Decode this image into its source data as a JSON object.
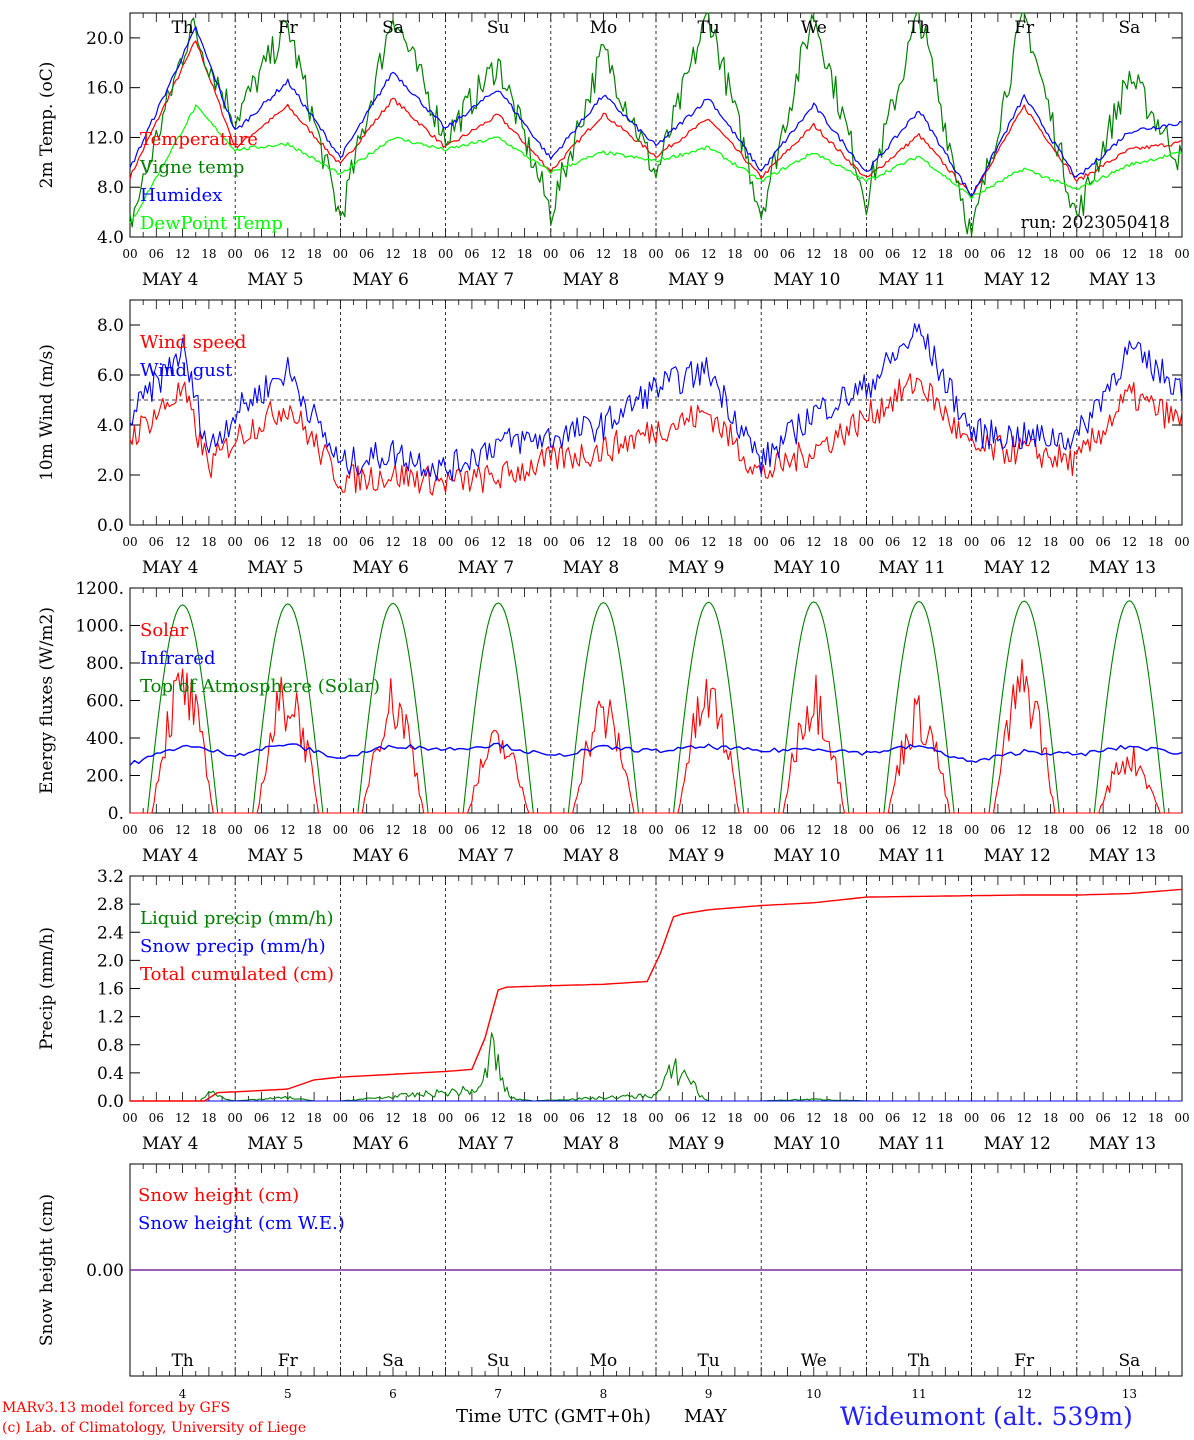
{
  "chart_data": [
    {
      "type": "line",
      "ylabel": "2m Temp. (oC)",
      "ylim": [
        4.0,
        22.0
      ],
      "yticks": [
        "4.0",
        "8.0",
        "12.0",
        "16.0",
        "20.0"
      ],
      "annotation": "run: 2023050418",
      "weekday_labels": [
        "Th",
        "Fr",
        "Sa",
        "Su",
        "Mo",
        "Tu",
        "We",
        "Th",
        "Fr",
        "Sa"
      ],
      "series": [
        {
          "name": "Temperature",
          "color": "#ff0000",
          "x_hours": [
            0,
            15,
            24,
            36,
            48,
            60,
            72,
            84,
            96,
            108,
            120,
            132,
            144,
            156,
            168,
            180,
            192,
            204,
            216,
            228,
            240
          ],
          "values": [
            8.8,
            19.8,
            11.2,
            14.5,
            9.8,
            15.1,
            11.2,
            13.8,
            9.3,
            13.9,
            10.5,
            13.5,
            8.8,
            13.0,
            8.7,
            12.2,
            7.3,
            14.5,
            8.5,
            11.0,
            11.6
          ]
        },
        {
          "name": "Vigne temp",
          "color": "#008000",
          "x_hours": [
            0,
            14,
            24,
            36,
            48,
            60,
            72,
            84,
            96,
            108,
            120,
            132,
            144,
            156,
            168,
            180,
            192,
            204,
            216,
            228,
            240
          ],
          "values": [
            5.0,
            21.0,
            13.5,
            21.0,
            5.5,
            22.0,
            12.0,
            18.0,
            6.0,
            19.0,
            9.0,
            22.0,
            6.0,
            22.0,
            7.0,
            22.0,
            4.0,
            22.0,
            5.5,
            17.0,
            10.0
          ]
        },
        {
          "name": "Humidex",
          "color": "#0000ff",
          "x_hours": [
            0,
            15,
            24,
            36,
            48,
            60,
            72,
            84,
            96,
            108,
            120,
            132,
            144,
            156,
            168,
            180,
            192,
            204,
            216,
            228,
            240
          ],
          "values": [
            9.5,
            20.8,
            12.5,
            16.5,
            10.4,
            17.3,
            12.7,
            15.9,
            10.3,
            15.4,
            11.3,
            15.2,
            9.3,
            14.6,
            9.2,
            14.2,
            7.3,
            15.3,
            8.7,
            12.5,
            13.2
          ]
        },
        {
          "name": "DewPoint Temp",
          "color": "#00ff00",
          "x_hours": [
            0,
            15,
            24,
            36,
            48,
            60,
            72,
            84,
            96,
            108,
            120,
            132,
            144,
            156,
            168,
            180,
            192,
            204,
            216,
            228,
            240
          ],
          "values": [
            5.0,
            14.5,
            11.0,
            11.5,
            9.0,
            12.0,
            11.0,
            12.0,
            9.2,
            10.8,
            10.1,
            11.2,
            8.5,
            10.8,
            8.5,
            10.5,
            7.2,
            9.5,
            7.8,
            9.8,
            10.8
          ]
        }
      ]
    },
    {
      "type": "line",
      "ylabel": "10m Wind (m/s)",
      "ylim": [
        0.0,
        9.0
      ],
      "yticks": [
        "0.0",
        "2.0",
        "4.0",
        "6.0",
        "8.0"
      ],
      "reference_line": 5.0,
      "series": [
        {
          "name": "Wind speed",
          "color": "#ff0000",
          "x_hours": [
            0,
            12,
            18,
            24,
            36,
            48,
            60,
            72,
            84,
            96,
            108,
            120,
            132,
            144,
            156,
            168,
            180,
            192,
            204,
            216,
            228,
            240
          ],
          "values": [
            3.5,
            5.4,
            2.3,
            3.5,
            4.8,
            1.8,
            2.0,
            1.7,
            1.9,
            2.6,
            3.0,
            3.8,
            4.5,
            2.0,
            3.0,
            4.3,
            5.8,
            3.0,
            3.0,
            2.5,
            5.2,
            4.1
          ]
        },
        {
          "name": "Wind gust",
          "color": "#0000ff",
          "x_hours": [
            0,
            12,
            18,
            24,
            36,
            48,
            60,
            72,
            84,
            96,
            108,
            120,
            132,
            144,
            156,
            168,
            180,
            192,
            204,
            216,
            228,
            240
          ],
          "values": [
            4.3,
            7.0,
            3.0,
            4.5,
            6.2,
            2.4,
            2.9,
            2.2,
            3.3,
            3.5,
            4.0,
            5.5,
            6.2,
            2.5,
            4.5,
            5.5,
            7.8,
            3.7,
            3.5,
            3.5,
            7.0,
            5.5
          ]
        }
      ]
    },
    {
      "type": "line",
      "ylabel": "Energy fluxes (W/m2)",
      "ylim": [
        0,
        1200
      ],
      "yticks": [
        "0.",
        "200.",
        "400.",
        "600.",
        "800.",
        "1000.",
        "1200."
      ],
      "series": [
        {
          "name": "Solar",
          "color": "#ff0000",
          "daily_peak": [
            830,
            780,
            750,
            470,
            660,
            760,
            780,
            650,
            850,
            370
          ]
        },
        {
          "name": "Infrared",
          "color": "#0000ff",
          "x_hours": [
            0,
            12,
            24,
            36,
            48,
            60,
            72,
            84,
            96,
            108,
            120,
            132,
            144,
            156,
            168,
            180,
            192,
            204,
            216,
            228,
            240
          ],
          "values": [
            260,
            360,
            310,
            370,
            290,
            360,
            340,
            365,
            300,
            350,
            330,
            355,
            330,
            345,
            320,
            360,
            270,
            330,
            310,
            355,
            320
          ]
        },
        {
          "name": "Top of Atmosphere (Solar)",
          "color": "#008000",
          "daily_peak": [
            1110,
            1115,
            1118,
            1120,
            1122,
            1124,
            1126,
            1128,
            1130,
            1132
          ]
        }
      ]
    },
    {
      "type": "line",
      "ylabel": "Precip (mm/h)",
      "ylim": [
        0.0,
        3.2
      ],
      "yticks": [
        "0.0",
        "0.4",
        "0.8",
        "1.2",
        "1.6",
        "2.0",
        "2.4",
        "2.8",
        "3.2"
      ],
      "series": [
        {
          "name": "Liquid precip (mm/h)",
          "color": "#008000",
          "x_hours": [
            0,
            16,
            19,
            22,
            24,
            36,
            42,
            48,
            80,
            83,
            85,
            87,
            92,
            120,
            124,
            128,
            130,
            132,
            144,
            156,
            168,
            240
          ],
          "values": [
            0,
            0,
            0.22,
            0.02,
            0,
            0.06,
            0,
            0,
            0.2,
            1.0,
            0.3,
            0.05,
            0,
            0.1,
            0.55,
            0.4,
            0.1,
            0,
            0,
            0.03,
            0,
            0
          ]
        },
        {
          "name": "Snow precip (mm/h)",
          "color": "#0000ff",
          "x_hours": [
            0,
            240
          ],
          "values": [
            0,
            0
          ]
        },
        {
          "name": "Total cumulated (cm)",
          "color": "#ff0000",
          "x_hours": [
            0,
            17,
            20,
            24,
            36,
            42,
            48,
            60,
            72,
            78,
            81,
            84,
            86,
            96,
            108,
            118,
            121,
            124,
            126,
            132,
            144,
            156,
            168,
            180,
            192,
            204,
            216,
            228,
            240
          ],
          "values": [
            0,
            0,
            0.12,
            0.13,
            0.17,
            0.3,
            0.34,
            0.38,
            0.42,
            0.45,
            0.9,
            1.58,
            1.62,
            1.64,
            1.66,
            1.7,
            2.1,
            2.62,
            2.66,
            2.72,
            2.78,
            2.82,
            2.9,
            2.91,
            2.92,
            2.93,
            2.93,
            2.95,
            3.01
          ]
        }
      ]
    },
    {
      "type": "line",
      "ylabel": "Snow height (cm)",
      "ylim": [
        -1,
        1
      ],
      "yticks": [
        "0.00"
      ],
      "weekday_labels": [
        "Th",
        "Fr",
        "Sa",
        "Su",
        "Mo",
        "Tu",
        "We",
        "Th",
        "Fr",
        "Sa"
      ],
      "day_numbers": [
        "4",
        "5",
        "6",
        "7",
        "8",
        "9",
        "10",
        "11",
        "12",
        "13"
      ],
      "xlabel": "Time UTC (GMT+0h)",
      "month": "MAY",
      "series": [
        {
          "name": "Snow height (cm)",
          "color": "#ff0000",
          "x_hours": [
            0,
            240
          ],
          "values": [
            0,
            0
          ]
        },
        {
          "name": "Snow height (cm W.E.)",
          "color": "#0000ff",
          "x_hours": [
            0,
            240
          ],
          "values": [
            0,
            0
          ]
        }
      ]
    }
  ],
  "hour_ticks": [
    "00",
    "06",
    "12",
    "18"
  ],
  "final_hour_tick": "00",
  "date_labels": [
    "MAY 4",
    "MAY 5",
    "MAY 6",
    "MAY 7",
    "MAY 8",
    "MAY 9",
    "MAY 10",
    "MAY 11",
    "MAY 12",
    "MAY 13"
  ],
  "weekend_color": "#ff0000",
  "weekday_color": "#000000",
  "footer": {
    "model": "MARv3.13 model forced by GFS",
    "credit": "(c) Lab. of Climatology, University of Liege",
    "station": "Wideumont (alt. 539m)"
  }
}
